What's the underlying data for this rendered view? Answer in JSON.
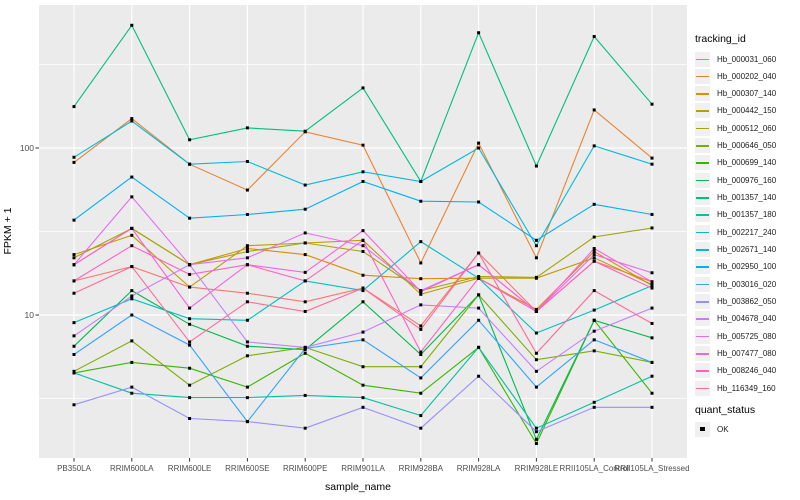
{
  "colors": {
    "panel_bg": "#EBEBEB",
    "grid": "#FFFFFF",
    "tick_mark": "#333333",
    "axis_text": "#4D4D4D",
    "point": "#000000",
    "legend_key_bg": "#F0F0F0"
  },
  "legend": {
    "title": "tracking_id"
  },
  "quant_legend": {
    "title": "quant_status",
    "items": [
      {
        "label": "OK"
      }
    ]
  },
  "chart_data": {
    "type": "line",
    "title": "",
    "xlabel": "sample_name",
    "ylabel": "FPKM + 1",
    "y_scale": "log10",
    "ylim": [
      1.3,
      720
    ],
    "grid": true,
    "legend_position": "right",
    "point_shape": "filled-square",
    "point_legend_label": "OK",
    "y_ticks": [
      {
        "label": "10",
        "value": 10
      },
      {
        "label": "100",
        "value": 100
      }
    ],
    "y_minor": [
      3.162,
      31.62,
      316.2
    ],
    "categories": [
      "PB350LA",
      "RRIM600LA",
      "RRIM600LE",
      "RRIM600SE",
      "RRIM600PE",
      "RRIM901LA",
      "RRIM928BA",
      "RRIM928LA",
      "RRIM928LE",
      "RRII105LA_Control",
      "RRII105LA_Stressed"
    ],
    "series": [
      {
        "name": "Hb_000031_060",
        "color": "#F8766D",
        "values": [
          16,
          19.5,
          14.7,
          13.5,
          12,
          14.5,
          8.6,
          23.5,
          10.5,
          21,
          15.8
        ]
      },
      {
        "name": "Hb_000202_040",
        "color": "#EA8331",
        "values": [
          82,
          150,
          80,
          56,
          125,
          104,
          20.5,
          107,
          22,
          169,
          87
        ]
      },
      {
        "name": "Hb_000307_140",
        "color": "#D89000",
        "values": [
          20,
          33,
          20,
          25,
          23,
          17.3,
          16.5,
          16.6,
          10.8,
          24,
          15
        ]
      },
      {
        "name": "Hb_000442_150",
        "color": "#C09B00",
        "values": [
          23,
          30,
          14.7,
          26,
          27,
          28,
          13.3,
          16.6,
          16.6,
          22,
          15.2
        ]
      },
      {
        "name": "Hb_000512_060",
        "color": "#A3A500",
        "values": [
          22,
          33,
          20,
          24,
          27,
          24,
          14,
          17,
          16.8,
          29.3,
          33.2
        ]
      },
      {
        "name": "Hb_000646_050",
        "color": "#7CAE00",
        "values": [
          4.6,
          7,
          3.8,
          5.7,
          6.4,
          4.9,
          4.9,
          13.2,
          5.4,
          6.1,
          5.2
        ]
      },
      {
        "name": "Hb_000699_140",
        "color": "#39B600",
        "values": [
          4.5,
          5.2,
          4.8,
          3.7,
          5.9,
          3.8,
          3.4,
          6.4,
          1.7,
          9.3,
          3.4
        ]
      },
      {
        "name": "Hb_000976_160",
        "color": "#00BB4E",
        "values": [
          6.5,
          14,
          8.8,
          6.5,
          6.2,
          12,
          5.8,
          13.2,
          1.8,
          9.3,
          7.3
        ]
      },
      {
        "name": "Hb_001357_140",
        "color": "#00BF7D",
        "values": [
          177,
          543,
          112,
          132,
          126,
          229,
          63,
          490,
          78,
          465,
          183
        ]
      },
      {
        "name": "Hb_001357_180",
        "color": "#00C1A3",
        "values": [
          4.5,
          3.4,
          3.2,
          3.2,
          3.3,
          3.2,
          2.5,
          6.4,
          2.1,
          3,
          4.3
        ]
      },
      {
        "name": "Hb_002217_240",
        "color": "#00BFC4",
        "values": [
          9,
          12.5,
          9.5,
          9.3,
          16,
          14,
          27.5,
          16.6,
          7.8,
          10.7,
          15
        ]
      },
      {
        "name": "Hb_002671_140",
        "color": "#00BBDA",
        "values": [
          88,
          145,
          80,
          83,
          60,
          72,
          63,
          100,
          26,
          103,
          80
        ]
      },
      {
        "name": "Hb_002950_100",
        "color": "#00B0F6",
        "values": [
          37,
          67,
          38,
          40,
          43,
          63,
          48,
          47.5,
          28,
          46,
          40
        ]
      },
      {
        "name": "Hb_003016_020",
        "color": "#35A2FF",
        "values": [
          5.8,
          10,
          6.6,
          2.3,
          6.3,
          7.1,
          4.2,
          9.3,
          3.7,
          7.1,
          5.2
        ]
      },
      {
        "name": "Hb_003862_050",
        "color": "#9590FF",
        "values": [
          2.9,
          3.7,
          2.4,
          2.3,
          2.1,
          2.8,
          2.1,
          4.3,
          2,
          2.8,
          2.8
        ]
      },
      {
        "name": "Hb_004678_040",
        "color": "#C77CFF",
        "values": [
          7.5,
          13,
          20,
          6.9,
          6.4,
          7.9,
          11.5,
          11,
          4.6,
          8,
          11
        ]
      },
      {
        "name": "Hb_005725_080",
        "color": "#E76BF3",
        "values": [
          20,
          51,
          20,
          22,
          31,
          26,
          14,
          20,
          10.5,
          23,
          17.9
        ]
      },
      {
        "name": "Hb_007477_080",
        "color": "#FA62DB",
        "values": [
          20,
          33,
          11,
          20,
          18,
          32,
          13.8,
          20,
          10.5,
          25,
          15.8
        ]
      },
      {
        "name": "Hb_008246_040",
        "color": "#FF61C3",
        "values": [
          16,
          26,
          17.5,
          20,
          16,
          28,
          6,
          16.6,
          10.5,
          21,
          14.5
        ]
      },
      {
        "name": "Hb_116349_160",
        "color": "#FF6A98",
        "values": [
          13.5,
          19.5,
          6.9,
          12,
          10.5,
          14.5,
          8.2,
          23.5,
          5.9,
          14,
          8.9
        ]
      }
    ]
  }
}
